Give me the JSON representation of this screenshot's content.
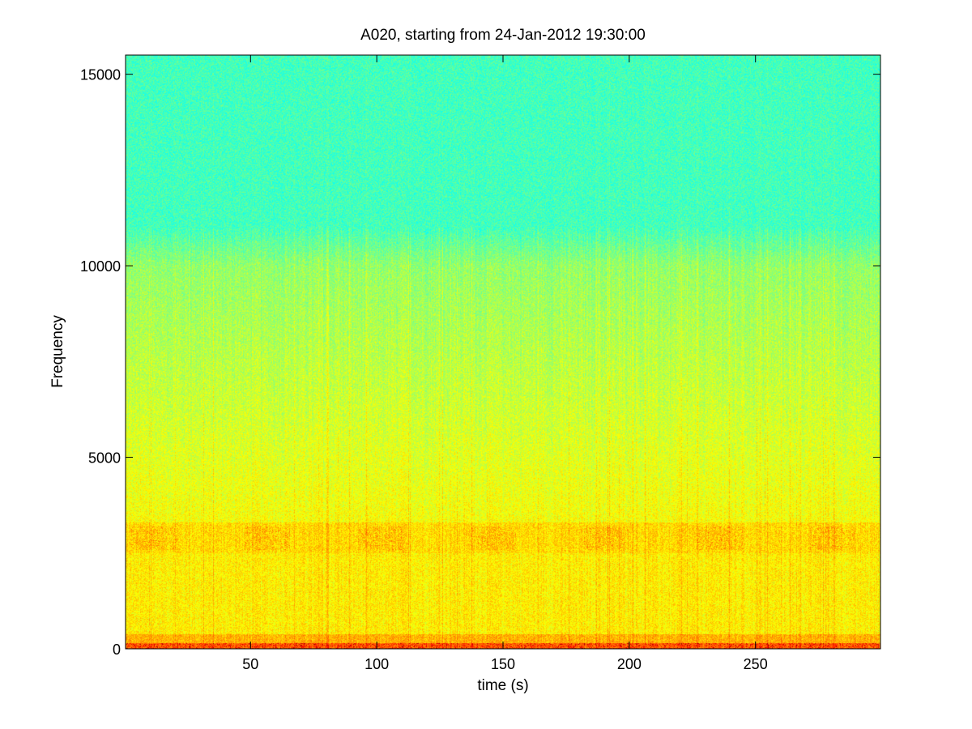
{
  "chart_data": {
    "type": "heatmap",
    "title": "A020, starting from 24-Jan-2012 19:30:00",
    "xlabel": "time (s)",
    "ylabel": "Frequency",
    "xlim": [
      0.5,
      299.5
    ],
    "ylim": [
      0,
      15500
    ],
    "x_ticks": [
      50,
      100,
      150,
      200,
      250
    ],
    "y_ticks": [
      0,
      5000,
      10000,
      15000
    ],
    "colormap": "jet",
    "colors": {
      "high_freq_band": "#3de8b8",
      "mid_freq_band": "#e8f020",
      "low_freq_band": "#ff9a00",
      "strongest": "#d40000"
    },
    "intensity_profile": [
      {
        "freq_from": 0,
        "freq_to": 400,
        "level": "highest (red/orange)"
      },
      {
        "freq_from": 400,
        "freq_to": 2500,
        "level": "high (yellow)"
      },
      {
        "freq_from": 2500,
        "freq_to": 3300,
        "level": "high (yellow-orange band)"
      },
      {
        "freq_from": 3300,
        "freq_to": 10000,
        "level": "medium (yellow-green)"
      },
      {
        "freq_from": 10000,
        "freq_to": 15500,
        "level": "low (cyan-green)"
      }
    ],
    "grid": false
  }
}
